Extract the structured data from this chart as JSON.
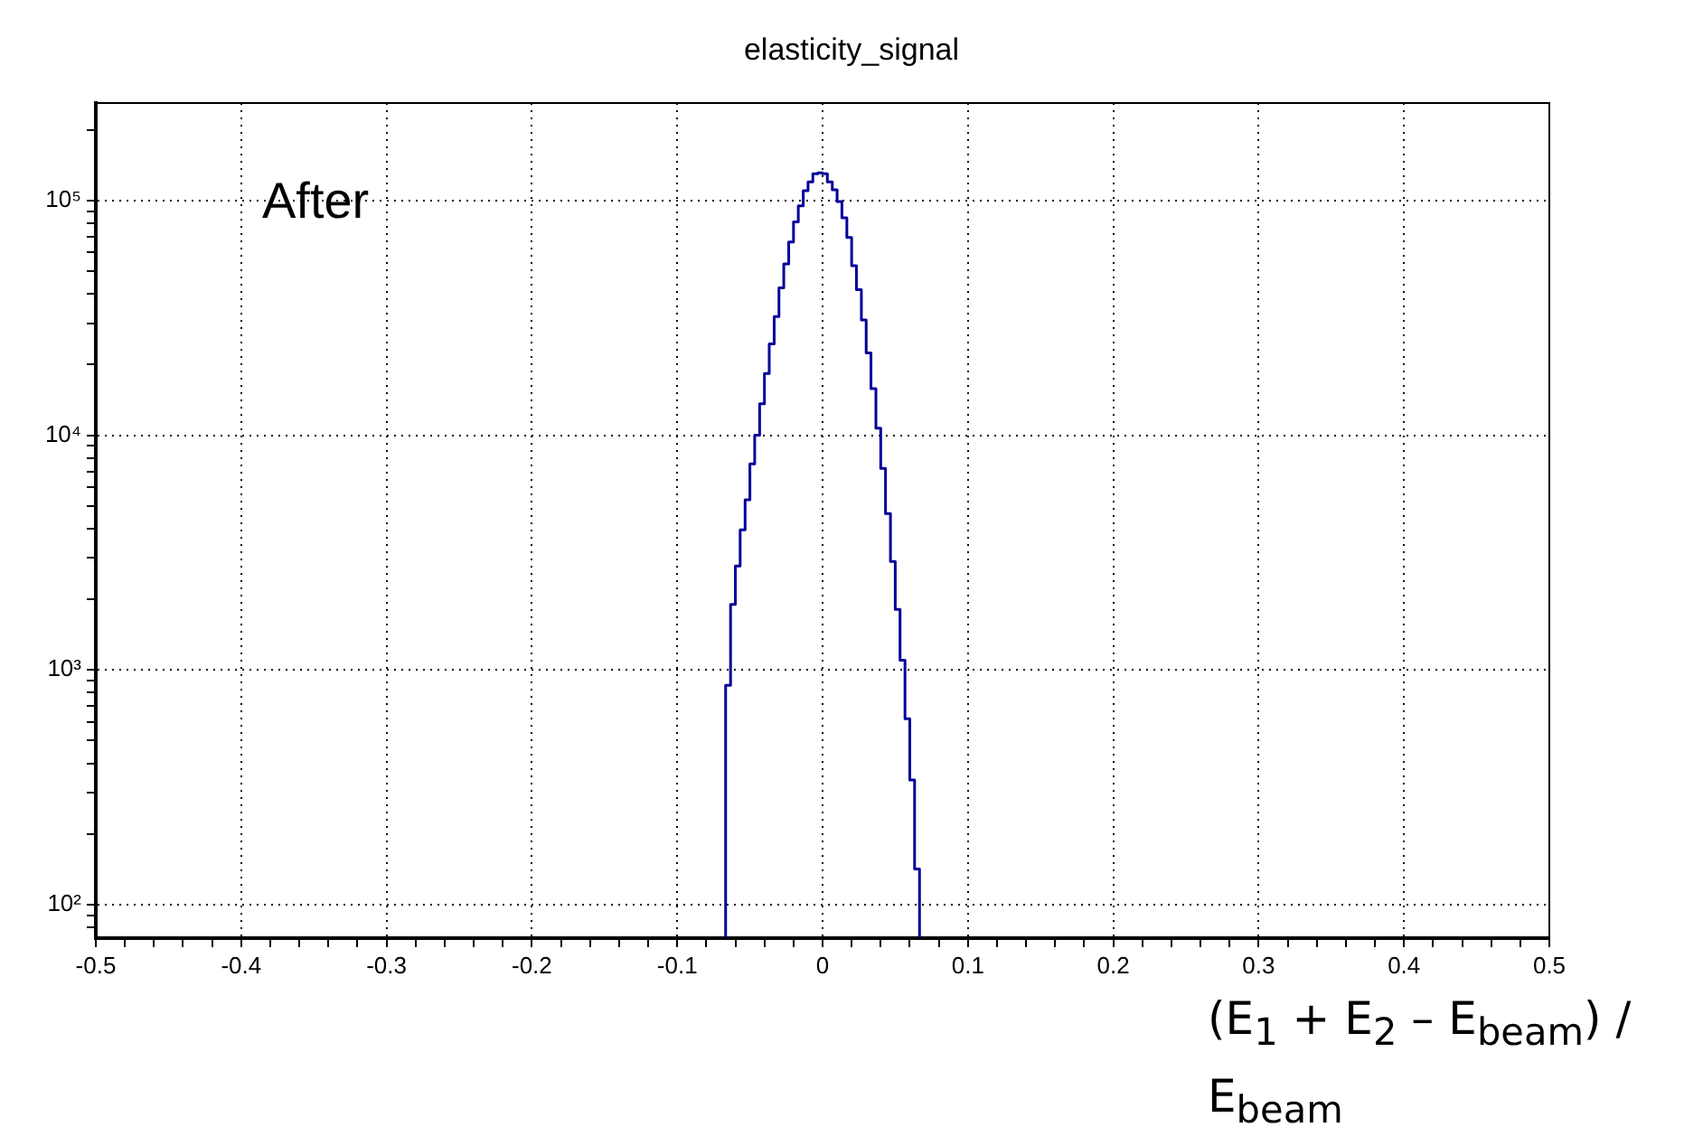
{
  "chart_data": {
    "type": "histogram",
    "title": "elasticity_signal",
    "xlabel": "(E$_{1}$ + E$_{2}$ – E$_{beam}$) / E$_{beam}$",
    "annotations": [
      "After"
    ],
    "bins": [
      -0.0667,
      -0.0633,
      -0.06,
      -0.0567,
      -0.0533,
      -0.05,
      -0.0467,
      -0.0433,
      -0.04,
      -0.0367,
      -0.0333,
      -0.03,
      -0.0267,
      -0.0233,
      -0.02,
      -0.0167,
      -0.0133,
      -0.01,
      -0.0067,
      -0.0033,
      0,
      0.0033,
      0.0067,
      0.01,
      0.0133,
      0.0167,
      0.02,
      0.0233,
      0.0267,
      0.03,
      0.0333,
      0.0367,
      0.04,
      0.0433,
      0.0467,
      0.05,
      0.0533,
      0.0567,
      0.06,
      0.0633,
      0.0667
    ],
    "values": [
      860,
      1900,
      2770,
      3950,
      5300,
      7550,
      10000,
      13600,
      18300,
      24500,
      32000,
      42400,
      53600,
      66600,
      81000,
      94800,
      110000,
      120000,
      130000,
      131000,
      130000,
      120000,
      111000,
      99000,
      84300,
      69500,
      52700,
      41700,
      31000,
      22400,
      15800,
      10700,
      7220,
      4630,
      2900,
      1810,
      1100,
      620,
      340,
      142
    ],
    "color": "#000099",
    "xlim": [
      -0.5,
      0.5
    ],
    "xticks": [
      -0.5,
      {
        "value": -0.48,
        "label": null
      },
      {
        "value": -0.46,
        "label": null
      },
      {
        "value": -0.44,
        "label": null
      },
      {
        "value": -0.42,
        "label": null
      },
      -0.4,
      {
        "value": -0.38,
        "label": null
      },
      {
        "value": -0.36,
        "label": null
      },
      {
        "value": -0.34,
        "label": null
      },
      {
        "value": -0.32,
        "label": null
      },
      -0.3,
      {
        "value": -0.28,
        "label": null
      },
      {
        "value": -0.26,
        "label": null
      },
      {
        "value": -0.24,
        "label": null
      },
      {
        "value": -0.22,
        "label": null
      },
      -0.2,
      {
        "value": -0.18,
        "label": null
      },
      {
        "value": -0.16,
        "label": null
      },
      {
        "value": -0.14,
        "label": null
      },
      {
        "value": -0.12,
        "label": null
      },
      -0.1,
      {
        "value": -0.08,
        "label": null
      },
      {
        "value": -0.06,
        "label": null
      },
      {
        "value": -0.04,
        "label": null
      },
      {
        "value": -0.02,
        "label": null
      },
      0,
      {
        "value": 0.02,
        "label": null
      },
      {
        "value": 0.04,
        "label": null
      },
      {
        "value": 0.06,
        "label": null
      },
      {
        "value": 0.08,
        "label": null
      },
      0.1,
      {
        "value": 0.12,
        "label": null
      },
      {
        "value": 0.14,
        "label": null
      },
      {
        "value": 0.16,
        "label": null
      },
      {
        "value": 0.18,
        "label": null
      },
      0.2,
      {
        "value": 0.22,
        "label": null
      },
      {
        "value": 0.24,
        "label": null
      },
      {
        "value": 0.26,
        "label": null
      },
      {
        "value": 0.28,
        "label": null
      },
      0.3,
      {
        "value": 0.32,
        "label": null
      },
      {
        "value": 0.34,
        "label": null
      },
      {
        "value": 0.36,
        "label": null
      },
      {
        "value": 0.38,
        "label": null
      },
      0.4,
      {
        "value": 0.42,
        "label": null
      },
      {
        "value": 0.44,
        "label": null
      },
      {
        "value": 0.46,
        "label": null
      },
      {
        "value": 0.48,
        "label": null
      },
      0.5
    ],
    "ylim": [
      72,
      260000
    ],
    "yticks": [
      {
        "value": 80,
        "label": null
      },
      {
        "value": 90,
        "label": null
      },
      {
        "value": 100,
        "label": "10²"
      },
      {
        "value": 200,
        "label": null
      },
      {
        "value": 300,
        "label": null
      },
      {
        "value": 400,
        "label": null
      },
      {
        "value": 500,
        "label": null
      },
      {
        "value": 600,
        "label": null
      },
      {
        "value": 700,
        "label": null
      },
      {
        "value": 800,
        "label": null
      },
      {
        "value": 900,
        "label": null
      },
      {
        "value": 1000,
        "label": "10³"
      },
      {
        "value": 2000,
        "label": null
      },
      {
        "value": 3000,
        "label": null
      },
      {
        "value": 4000,
        "label": null
      },
      {
        "value": 5000,
        "label": null
      },
      {
        "value": 6000,
        "label": null
      },
      {
        "value": 7000,
        "label": null
      },
      {
        "value": 8000,
        "label": null
      },
      {
        "value": 9000,
        "label": null
      },
      {
        "value": 10000,
        "label": "10⁴"
      },
      {
        "value": 20000,
        "label": null
      },
      {
        "value": 30000,
        "label": null
      },
      {
        "value": 40000,
        "label": null
      },
      {
        "value": 50000,
        "label": null
      },
      {
        "value": 60000,
        "label": null
      },
      {
        "value": 70000,
        "label": null
      },
      {
        "value": 80000,
        "label": null
      },
      {
        "value": 90000,
        "label": null
      },
      {
        "value": 100000,
        "label": "10⁵"
      },
      {
        "value": 200000,
        "label": null
      }
    ],
    "log": "y",
    "grid": true,
    "legend": false
  }
}
